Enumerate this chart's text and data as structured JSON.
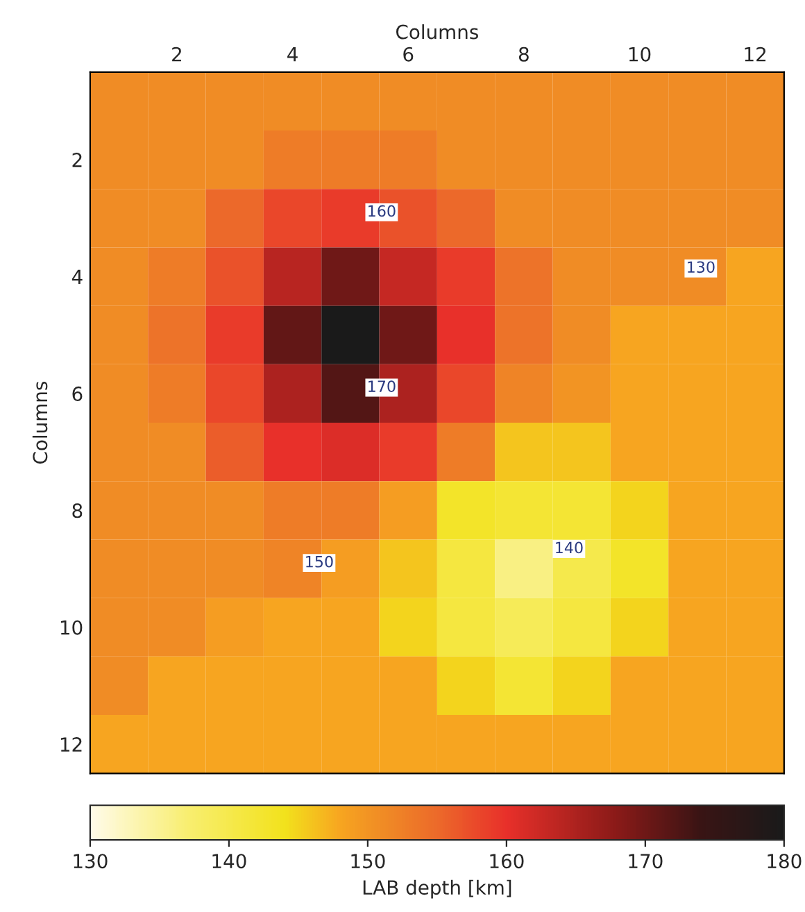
{
  "chart_data": {
    "type": "heatmap",
    "xlabel": "Columns",
    "ylabel": "Columns",
    "clabel": "LAB depth [km]",
    "categories": [
      null,
      "2",
      null,
      "4",
      null,
      "6",
      null,
      "8",
      null,
      "10",
      null,
      "12"
    ],
    "y_categories": [
      null,
      "2",
      null,
      "4",
      null,
      "6",
      null,
      "8",
      null,
      "10",
      null,
      "12"
    ],
    "cells": [
      [
        151,
        151,
        151,
        151,
        151,
        151,
        151,
        151,
        151,
        151,
        151,
        151
      ],
      [
        151,
        151,
        151,
        153,
        153,
        153,
        151,
        151,
        151,
        151,
        151,
        151
      ],
      [
        151,
        151,
        155,
        158,
        159,
        157,
        155,
        151,
        151,
        151,
        151,
        151
      ],
      [
        151,
        153,
        157,
        164,
        170,
        163,
        159,
        154,
        151,
        151,
        151,
        148
      ],
      [
        151,
        154,
        159,
        171,
        180,
        170,
        160,
        154,
        151,
        148,
        148,
        148
      ],
      [
        151,
        153,
        158,
        165,
        172,
        165,
        158,
        152,
        150,
        148,
        148,
        148
      ],
      [
        151,
        151,
        156,
        160,
        161,
        159,
        153,
        146,
        146,
        148,
        148,
        148
      ],
      [
        151,
        151,
        151,
        153,
        153,
        149,
        143,
        142,
        142,
        145,
        148,
        148
      ],
      [
        151,
        151,
        151,
        152,
        149,
        146,
        141,
        136,
        140,
        143,
        148,
        148
      ],
      [
        151,
        151,
        149,
        148,
        148,
        145,
        141,
        139,
        141,
        145,
        148,
        148
      ],
      [
        151,
        148,
        148,
        148,
        148,
        148,
        145,
        142,
        145,
        148,
        148,
        148
      ],
      [
        148,
        148,
        148,
        148,
        148,
        148,
        148,
        148,
        148,
        148,
        148,
        148
      ]
    ],
    "clim": [
      130,
      180
    ],
    "cticks": [
      130,
      140,
      150,
      160,
      170,
      180
    ],
    "tick_labels": "xy",
    "annotations": [
      "160",
      "170",
      "130",
      "150",
      "140"
    ]
  }
}
